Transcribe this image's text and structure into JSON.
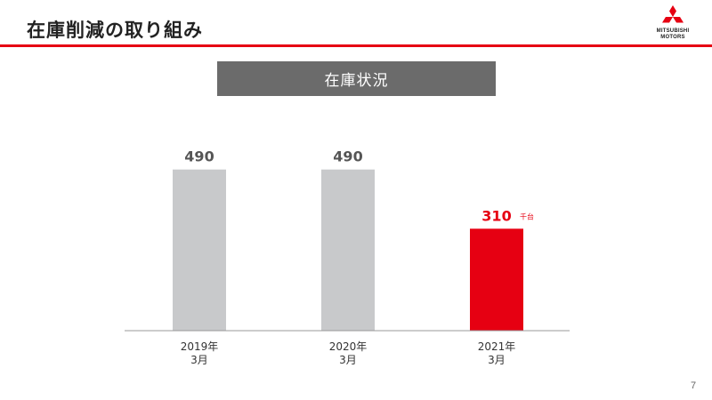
{
  "header": {
    "title": "在庫削減の取り組み",
    "logo_line1": "MITSUBISHI",
    "logo_line2": "MOTORS",
    "accent_color": "#e60012"
  },
  "section_label": "在庫状況",
  "page_number": "7",
  "chart_data": {
    "type": "bar",
    "categories": [
      [
        "2019年",
        "3月"
      ],
      [
        "2020年",
        "3月"
      ],
      [
        "2021年",
        "3月"
      ]
    ],
    "values": [
      490,
      490,
      310
    ],
    "data_labels": [
      "490",
      "490",
      "310"
    ],
    "unit_label": "千台",
    "bar_colors": [
      "#c8c9cb",
      "#c8c9cb",
      "#e60012"
    ],
    "label_colors": [
      "#555555",
      "#555555",
      "#e60012"
    ],
    "ylim": [
      0,
      600
    ],
    "grid": false,
    "title": "",
    "xlabel": "",
    "ylabel": ""
  }
}
